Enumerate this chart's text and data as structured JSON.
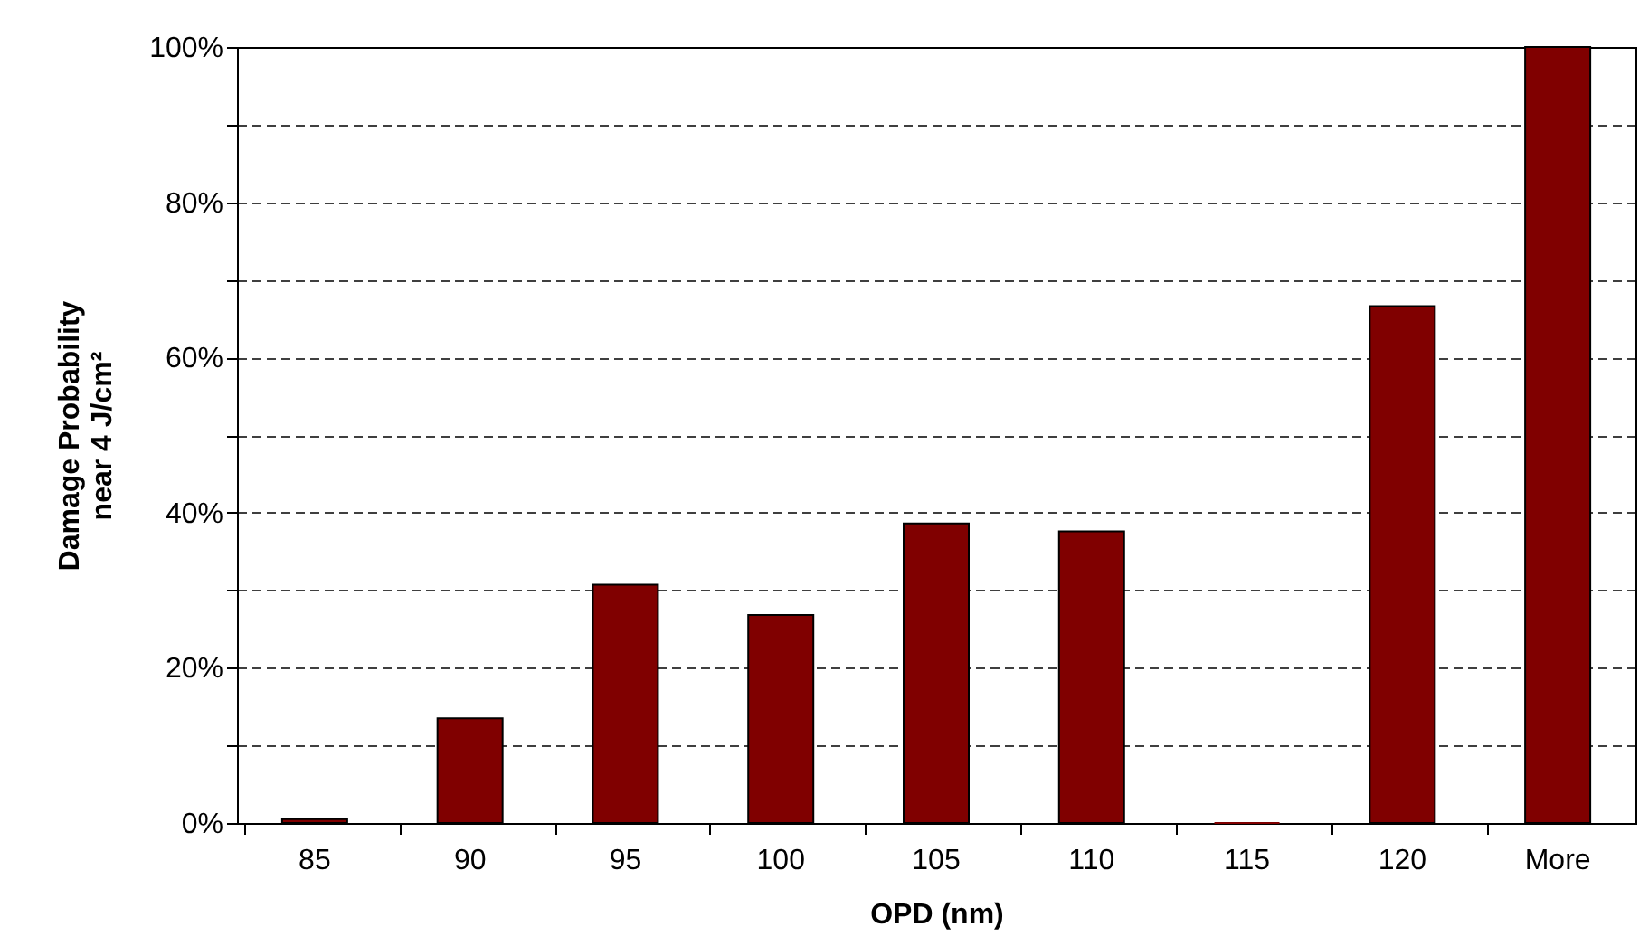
{
  "chart_data": {
    "type": "bar",
    "xlabel": "OPD (nm)",
    "ylabel": "Damage Probability\nnear 4 J/cm²",
    "categories": [
      "85",
      "90",
      "95",
      "100",
      "105",
      "110",
      "115",
      "120",
      "More"
    ],
    "values": [
      0.5,
      13.5,
      30.7,
      26.8,
      38.6,
      37.6,
      0,
      66.6,
      100
    ],
    "color": "#800000",
    "ylim": [
      0,
      100
    ],
    "yticks": [
      {
        "value": 0,
        "label": "0%"
      },
      {
        "value": 10,
        "label": null
      },
      {
        "value": 20,
        "label": "20%"
      },
      {
        "value": 30,
        "label": null
      },
      {
        "value": 40,
        "label": "40%"
      },
      {
        "value": 50,
        "label": null
      },
      {
        "value": 60,
        "label": "60%"
      },
      {
        "value": 70,
        "label": null
      },
      {
        "value": 80,
        "label": "80%"
      },
      {
        "value": 90,
        "label": null
      },
      {
        "value": 100,
        "label": "100%"
      }
    ],
    "grid": "y"
  }
}
